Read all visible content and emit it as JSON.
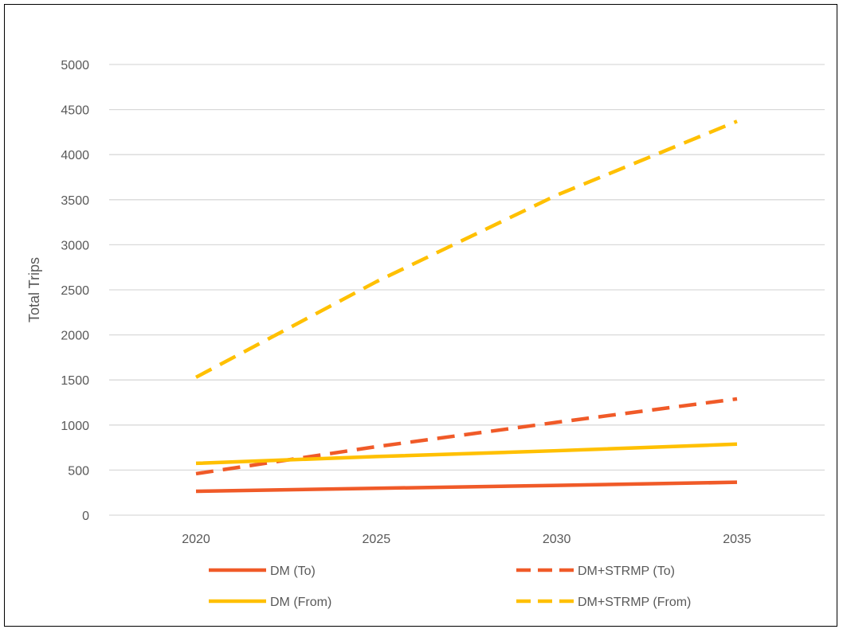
{
  "chart_data": {
    "type": "line",
    "title": "",
    "xlabel": "",
    "ylabel": "Total Trips",
    "categories": [
      "2020",
      "2025",
      "2030",
      "2035"
    ],
    "x": [
      2020,
      2025,
      2030,
      2035
    ],
    "ylim": [
      0,
      5000
    ],
    "y_ticks": [
      0,
      500,
      1000,
      1500,
      2000,
      2500,
      3000,
      3500,
      4000,
      4500,
      5000
    ],
    "grid": true,
    "legend_position": "bottom",
    "series": [
      {
        "name": "DM (To)",
        "values": [
          265,
          298,
          330,
          365
        ],
        "color": "#F05A28",
        "dashed": false
      },
      {
        "name": "DM+STRMP (To)",
        "values": [
          460,
          760,
          1030,
          1290
        ],
        "color": "#F05A28",
        "dashed": true
      },
      {
        "name": "DM (From)",
        "values": [
          575,
          650,
          715,
          788
        ],
        "color": "#FFC000",
        "dashed": false
      },
      {
        "name": "DM+STRMP (From)",
        "values": [
          1530,
          2590,
          3550,
          4370
        ],
        "color": "#FFC000",
        "dashed": true
      }
    ]
  }
}
